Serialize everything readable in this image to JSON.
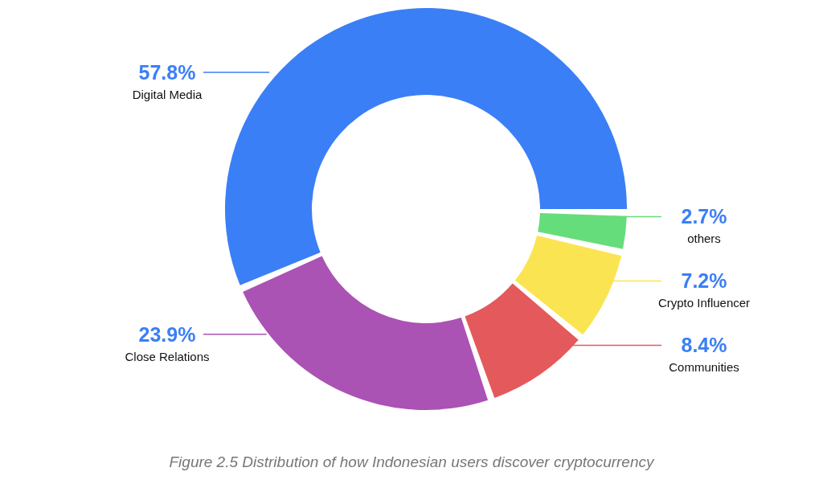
{
  "chart_data": {
    "type": "donut",
    "categories": [
      "Digital Media",
      "Close Relations",
      "Communities",
      "Crypto Influencer",
      "others"
    ],
    "values": [
      57.8,
      23.9,
      8.4,
      7.2,
      2.7
    ],
    "colors": [
      "#3a7ff6",
      "#ab52b5",
      "#e4595c",
      "#fbe452",
      "#66dd7b"
    ],
    "value_labels": [
      "57.8%",
      "23.9%",
      "8.4%",
      "7.2%",
      "2.7%"
    ],
    "legend": false,
    "annotations": [
      "Figure 2.5 Distribution of how Indonesian users discover cryptocurrency"
    ]
  }
}
